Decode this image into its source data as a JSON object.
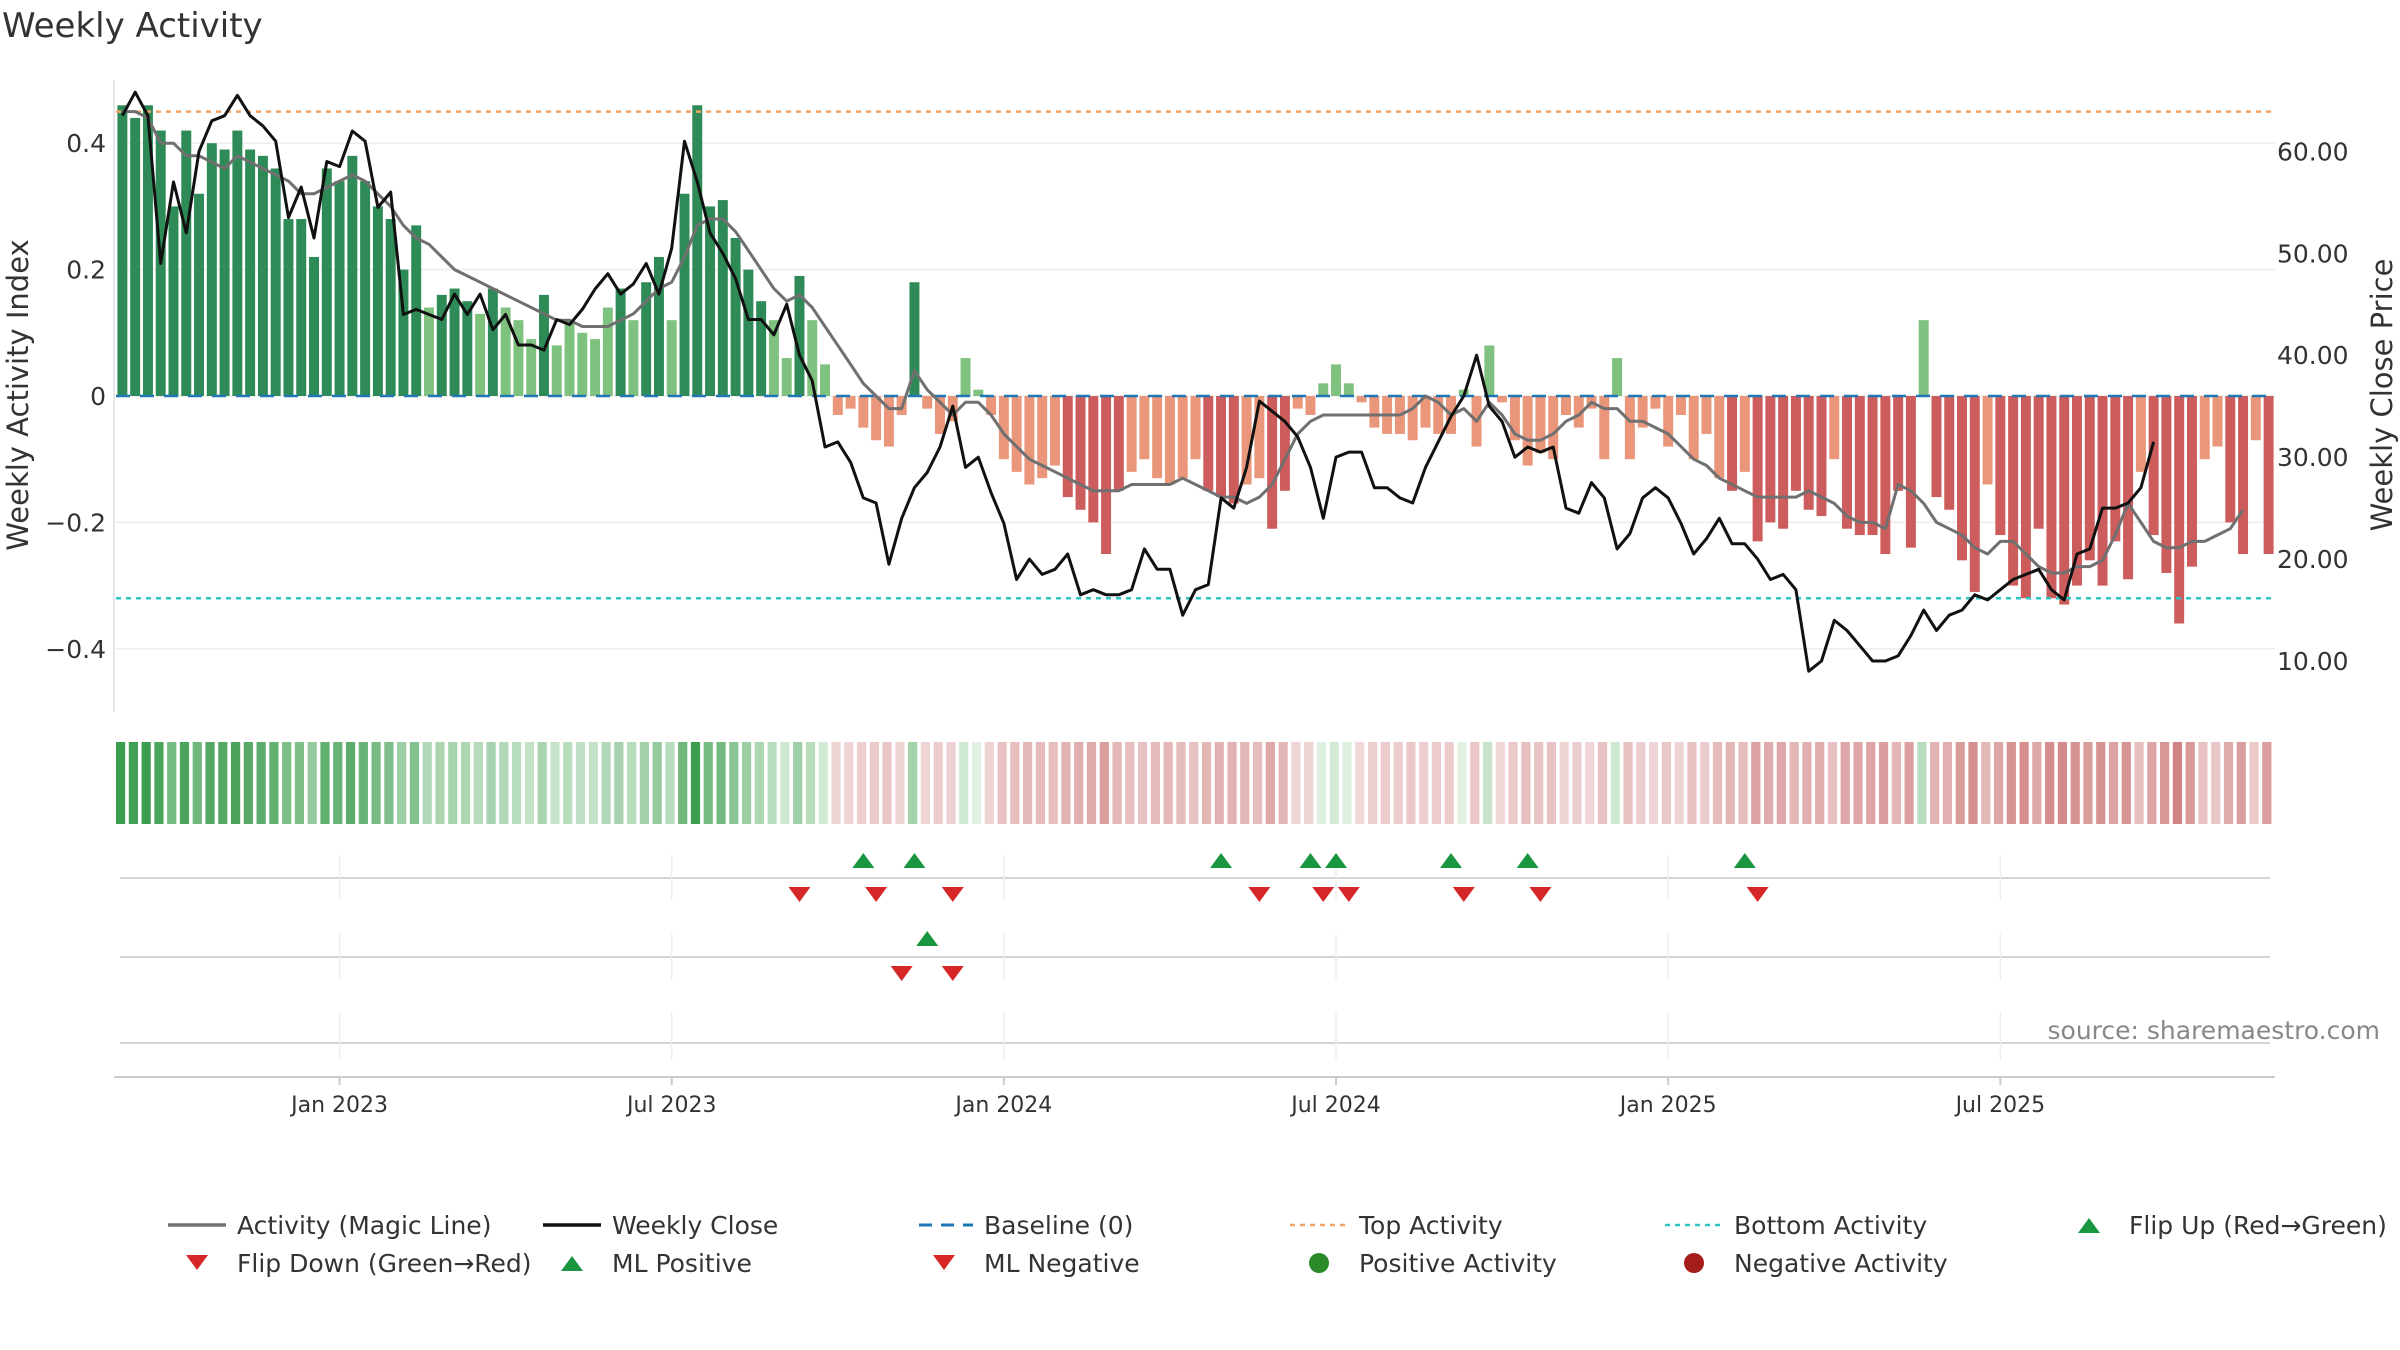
{
  "chart_data": {
    "type": "bar",
    "title": "Weekly Activity",
    "ylabel": "Weekly Activity Index",
    "y2label": "Weekly Close Price",
    "ylim": [
      -0.5,
      0.5
    ],
    "y2lim": [
      5,
      67
    ],
    "yticks": [
      0.4,
      0.2,
      0,
      -0.2,
      -0.4
    ],
    "ytick_labels": [
      "0.4",
      "0.2",
      "0",
      "−0.2",
      "−0.4"
    ],
    "y2ticks": [
      60,
      50,
      40,
      30,
      20,
      10
    ],
    "y2tick_labels": [
      "60.00",
      "50.00",
      "40.00",
      "30.00",
      "20.00",
      "10.00"
    ],
    "x_tick_labels": [
      "Jan 2023",
      "Jul 2023",
      "Jan 2024",
      "Jul 2024",
      "Jan 2025",
      "Jul 2025"
    ],
    "x_tick_weeks": [
      17,
      43,
      69,
      95,
      121,
      147
    ],
    "top_activity": 0.45,
    "bottom_activity": -0.32,
    "source": "source: sharemaestro.com",
    "colors": {
      "pos_dark": "#2e8b57",
      "pos_light": "#7fc17f",
      "neg_dark": "#cd5c5c",
      "neg_light": "#e9967a",
      "magic": "#707070",
      "close": "#111111",
      "baseline": "#1f77b4",
      "top": "#f4a261",
      "bottom": "#2ec4c4",
      "up": "#1a9641",
      "down": "#d62728"
    },
    "activity": [
      0.46,
      0.44,
      0.46,
      0.42,
      0.3,
      0.42,
      0.32,
      0.4,
      0.39,
      0.42,
      0.39,
      0.38,
      0.36,
      0.28,
      0.28,
      0.22,
      0.36,
      0.34,
      0.38,
      0.34,
      0.3,
      0.28,
      0.2,
      0.27,
      0.14,
      0.16,
      0.17,
      0.15,
      0.13,
      0.17,
      0.14,
      0.12,
      0.09,
      0.16,
      0.08,
      0.12,
      0.1,
      0.09,
      0.14,
      0.17,
      0.12,
      0.18,
      0.22,
      0.12,
      0.32,
      0.46,
      0.3,
      0.31,
      0.25,
      0.2,
      0.15,
      0.12,
      0.06,
      0.19,
      0.12,
      0.05,
      -0.03,
      -0.02,
      -0.05,
      -0.07,
      -0.08,
      -0.03,
      0.18,
      -0.02,
      -0.06,
      -0.04,
      0.06,
      0.01,
      -0.03,
      -0.1,
      -0.12,
      -0.14,
      -0.13,
      -0.11,
      -0.16,
      -0.18,
      -0.2,
      -0.25,
      -0.15,
      -0.12,
      -0.1,
      -0.13,
      -0.14,
      -0.13,
      -0.1,
      -0.15,
      -0.16,
      -0.17,
      -0.14,
      -0.13,
      -0.21,
      -0.15,
      -0.02,
      -0.03,
      0.02,
      0.05,
      0.02,
      -0.01,
      -0.05,
      -0.06,
      -0.06,
      -0.07,
      -0.05,
      -0.06,
      -0.06,
      0.01,
      -0.08,
      0.08,
      -0.01,
      -0.07,
      -0.11,
      -0.09,
      -0.1,
      -0.03,
      -0.05,
      -0.02,
      -0.1,
      0.06,
      -0.1,
      -0.05,
      -0.02,
      -0.08,
      -0.03,
      -0.1,
      -0.06,
      -0.13,
      -0.15,
      -0.12,
      -0.23,
      -0.2,
      -0.21,
      -0.15,
      -0.18,
      -0.19,
      -0.1,
      -0.21,
      -0.22,
      -0.22,
      -0.25,
      -0.15,
      -0.24,
      0.12,
      -0.16,
      -0.18,
      -0.26,
      -0.31,
      -0.14,
      -0.22,
      -0.3,
      -0.32,
      -0.21,
      -0.32,
      -0.33,
      -0.3,
      -0.26,
      -0.3,
      -0.23,
      -0.29,
      -0.12,
      -0.22,
      -0.28,
      -0.36,
      -0.27,
      -0.1,
      -0.08,
      -0.2,
      -0.25,
      -0.07,
      -0.25
    ],
    "magic_line": [
      0.45,
      0.45,
      0.44,
      0.4,
      0.4,
      0.38,
      0.38,
      0.37,
      0.36,
      0.38,
      0.37,
      0.36,
      0.35,
      0.34,
      0.32,
      0.32,
      0.33,
      0.34,
      0.35,
      0.34,
      0.32,
      0.3,
      0.27,
      0.25,
      0.24,
      0.22,
      0.2,
      0.19,
      0.18,
      0.17,
      0.16,
      0.15,
      0.14,
      0.13,
      0.12,
      0.12,
      0.11,
      0.11,
      0.11,
      0.12,
      0.13,
      0.15,
      0.17,
      0.18,
      0.22,
      0.27,
      0.28,
      0.28,
      0.26,
      0.23,
      0.2,
      0.17,
      0.15,
      0.16,
      0.14,
      0.11,
      0.08,
      0.05,
      0.02,
      0.0,
      -0.02,
      -0.02,
      0.04,
      0.01,
      -0.01,
      -0.03,
      -0.01,
      -0.01,
      -0.03,
      -0.06,
      -0.08,
      -0.1,
      -0.11,
      -0.12,
      -0.13,
      -0.14,
      -0.15,
      -0.15,
      -0.15,
      -0.14,
      -0.14,
      -0.14,
      -0.14,
      -0.13,
      -0.14,
      -0.15,
      -0.16,
      -0.16,
      -0.17,
      -0.16,
      -0.14,
      -0.1,
      -0.06,
      -0.04,
      -0.03,
      -0.03,
      -0.03,
      -0.03,
      -0.03,
      -0.03,
      -0.03,
      -0.02,
      0.0,
      -0.01,
      -0.03,
      -0.02,
      -0.04,
      -0.01,
      -0.03,
      -0.06,
      -0.07,
      -0.07,
      -0.06,
      -0.04,
      -0.03,
      -0.01,
      -0.02,
      -0.02,
      -0.04,
      -0.04,
      -0.05,
      -0.06,
      -0.08,
      -0.1,
      -0.11,
      -0.13,
      -0.14,
      -0.15,
      -0.16,
      -0.16,
      -0.16,
      -0.16,
      -0.15,
      -0.16,
      -0.17,
      -0.19,
      -0.2,
      -0.2,
      -0.21,
      -0.14,
      -0.15,
      -0.17,
      -0.2,
      -0.21,
      -0.22,
      -0.24,
      -0.25,
      -0.23,
      -0.23,
      -0.25,
      -0.27,
      -0.28,
      -0.28,
      -0.27,
      -0.27,
      -0.26,
      -0.22,
      -0.17,
      -0.2,
      -0.23,
      -0.24,
      -0.24,
      -0.23,
      -0.23,
      -0.22,
      -0.21,
      -0.18
    ],
    "weekly_close": [
      63.5,
      65.8,
      63.5,
      49.0,
      57.0,
      52.0,
      60.0,
      63.0,
      63.5,
      65.5,
      63.5,
      62.5,
      61.0,
      53.5,
      56.5,
      51.5,
      59.0,
      58.5,
      62.0,
      61.0,
      54.5,
      56.0,
      44.0,
      44.5,
      44.0,
      43.5,
      46.0,
      44.0,
      46.0,
      42.5,
      44.0,
      41.0,
      41.0,
      40.5,
      43.5,
      43.0,
      44.5,
      46.5,
      48.0,
      46.0,
      47.0,
      49.0,
      46.0,
      50.5,
      61.0,
      57.0,
      52.0,
      50.0,
      47.5,
      43.5,
      43.5,
      42.0,
      45.0,
      40.0,
      37.5,
      31.0,
      31.5,
      29.5,
      26.0,
      25.5,
      19.5,
      24.0,
      27.0,
      28.5,
      31.0,
      35.0,
      29.0,
      30.0,
      26.5,
      23.5,
      18.0,
      20.0,
      18.5,
      19.0,
      20.5,
      16.5,
      17.0,
      16.5,
      16.5,
      17.0,
      21.0,
      19.0,
      19.0,
      14.5,
      17.0,
      17.5,
      26.0,
      25.0,
      29.0,
      35.5,
      34.5,
      33.5,
      32.0,
      29.0,
      24.0,
      30.0,
      30.5,
      30.5,
      27.0,
      27.0,
      26.0,
      25.5,
      29.0,
      31.5,
      34.0,
      36.0,
      40.0,
      35.0,
      33.5,
      30.0,
      31.0,
      30.5,
      31.0,
      25.0,
      24.5,
      27.5,
      26.0,
      21.0,
      22.5,
      26.0,
      27.0,
      26.0,
      23.5,
      20.5,
      22.0,
      24.0,
      21.5,
      21.5,
      20.0,
      18.0,
      18.5,
      17.0,
      9.0,
      10.0,
      14.0,
      13.0,
      11.5,
      10.0,
      10.0,
      10.5,
      12.5,
      15.0,
      13.0,
      14.5,
      15.0,
      16.5,
      16.0,
      17.0,
      18.0,
      18.5,
      19.0,
      17.0,
      16.0,
      20.5,
      21.0,
      25.0,
      25.0,
      25.5,
      27.0,
      31.5
    ],
    "heat_values": [
      0.46,
      0.44,
      0.46,
      0.42,
      0.3,
      0.42,
      0.32,
      0.4,
      0.39,
      0.42,
      0.39,
      0.38,
      0.36,
      0.28,
      0.28,
      0.22,
      0.36,
      0.34,
      0.38,
      0.34,
      0.3,
      0.28,
      0.2,
      0.27,
      0.14,
      0.16,
      0.17,
      0.15,
      0.13,
      0.17,
      0.14,
      0.12,
      0.09,
      0.16,
      0.08,
      0.12,
      0.1,
      0.09,
      0.14,
      0.17,
      0.12,
      0.18,
      0.22,
      0.12,
      0.32,
      0.46,
      0.3,
      0.31,
      0.25,
      0.2,
      0.15,
      0.12,
      0.06,
      0.19,
      0.12,
      0.05,
      -0.03,
      -0.02,
      -0.05,
      -0.07,
      -0.08,
      -0.03,
      0.18,
      -0.02,
      -0.06,
      -0.04,
      0.06,
      0.01,
      -0.03,
      -0.1,
      -0.12,
      -0.14,
      -0.13,
      -0.11,
      -0.16,
      -0.18,
      -0.2,
      -0.25,
      -0.15,
      -0.12,
      -0.1,
      -0.13,
      -0.14,
      -0.13,
      -0.1,
      -0.15,
      -0.16,
      -0.17,
      -0.14,
      -0.13,
      -0.21,
      -0.15,
      -0.02,
      -0.03,
      0.02,
      0.05,
      0.02,
      -0.01,
      -0.05,
      -0.06,
      -0.06,
      -0.07,
      -0.05,
      -0.06,
      -0.06,
      0.01,
      -0.08,
      0.08,
      -0.01,
      -0.07,
      -0.11,
      -0.09,
      -0.1,
      -0.03,
      -0.05,
      -0.02,
      -0.1,
      0.06,
      -0.1,
      -0.05,
      -0.02,
      -0.08,
      -0.03,
      -0.1,
      -0.06,
      -0.13,
      -0.15,
      -0.12,
      -0.23,
      -0.2,
      -0.21,
      -0.15,
      -0.18,
      -0.19,
      -0.1,
      -0.21,
      -0.22,
      -0.22,
      -0.25,
      -0.15,
      -0.24,
      0.12,
      -0.16,
      -0.18,
      -0.26,
      -0.31,
      -0.14,
      -0.22,
      -0.3,
      -0.32,
      -0.21,
      -0.32,
      -0.33,
      -0.3,
      -0.26,
      -0.3,
      -0.23,
      -0.29,
      -0.12,
      -0.22,
      -0.28,
      -0.36,
      -0.27,
      -0.1,
      -0.08,
      -0.2,
      -0.25,
      -0.07,
      -0.25
    ],
    "flip_up_weeks": [
      58,
      62,
      86,
      93,
      95,
      104,
      110,
      127
    ],
    "flip_down_weeks": [
      53,
      59,
      65,
      89,
      94,
      96,
      105,
      111,
      128
    ],
    "ml_positive_weeks": [
      63
    ],
    "ml_negative_weeks": [
      61,
      65
    ],
    "legend": [
      {
        "label": "Activity (Magic Line)",
        "kind": "line",
        "color": "#707070"
      },
      {
        "label": "Weekly Close",
        "kind": "line",
        "color": "#111111"
      },
      {
        "label": "Baseline (0)",
        "kind": "dashed",
        "color": "#1f77b4"
      },
      {
        "label": "Top Activity",
        "kind": "dotted",
        "color": "#f4a261"
      },
      {
        "label": "Bottom Activity",
        "kind": "dotted",
        "color": "#2ec4c4"
      },
      {
        "label": "Flip Up (Red→Green)",
        "kind": "tri-up",
        "color": "#1a9641"
      },
      {
        "label": "Flip Down (Green→Red)",
        "kind": "tri-down",
        "color": "#d62728"
      },
      {
        "label": "ML Positive",
        "kind": "tri-up",
        "color": "#1a9641"
      },
      {
        "label": "ML Negative",
        "kind": "tri-down",
        "color": "#d62728"
      },
      {
        "label": "Positive Activity",
        "kind": "dot",
        "color": "#2a8a2a"
      },
      {
        "label": "Negative Activity",
        "kind": "dot",
        "color": "#a51c1c"
      }
    ]
  }
}
